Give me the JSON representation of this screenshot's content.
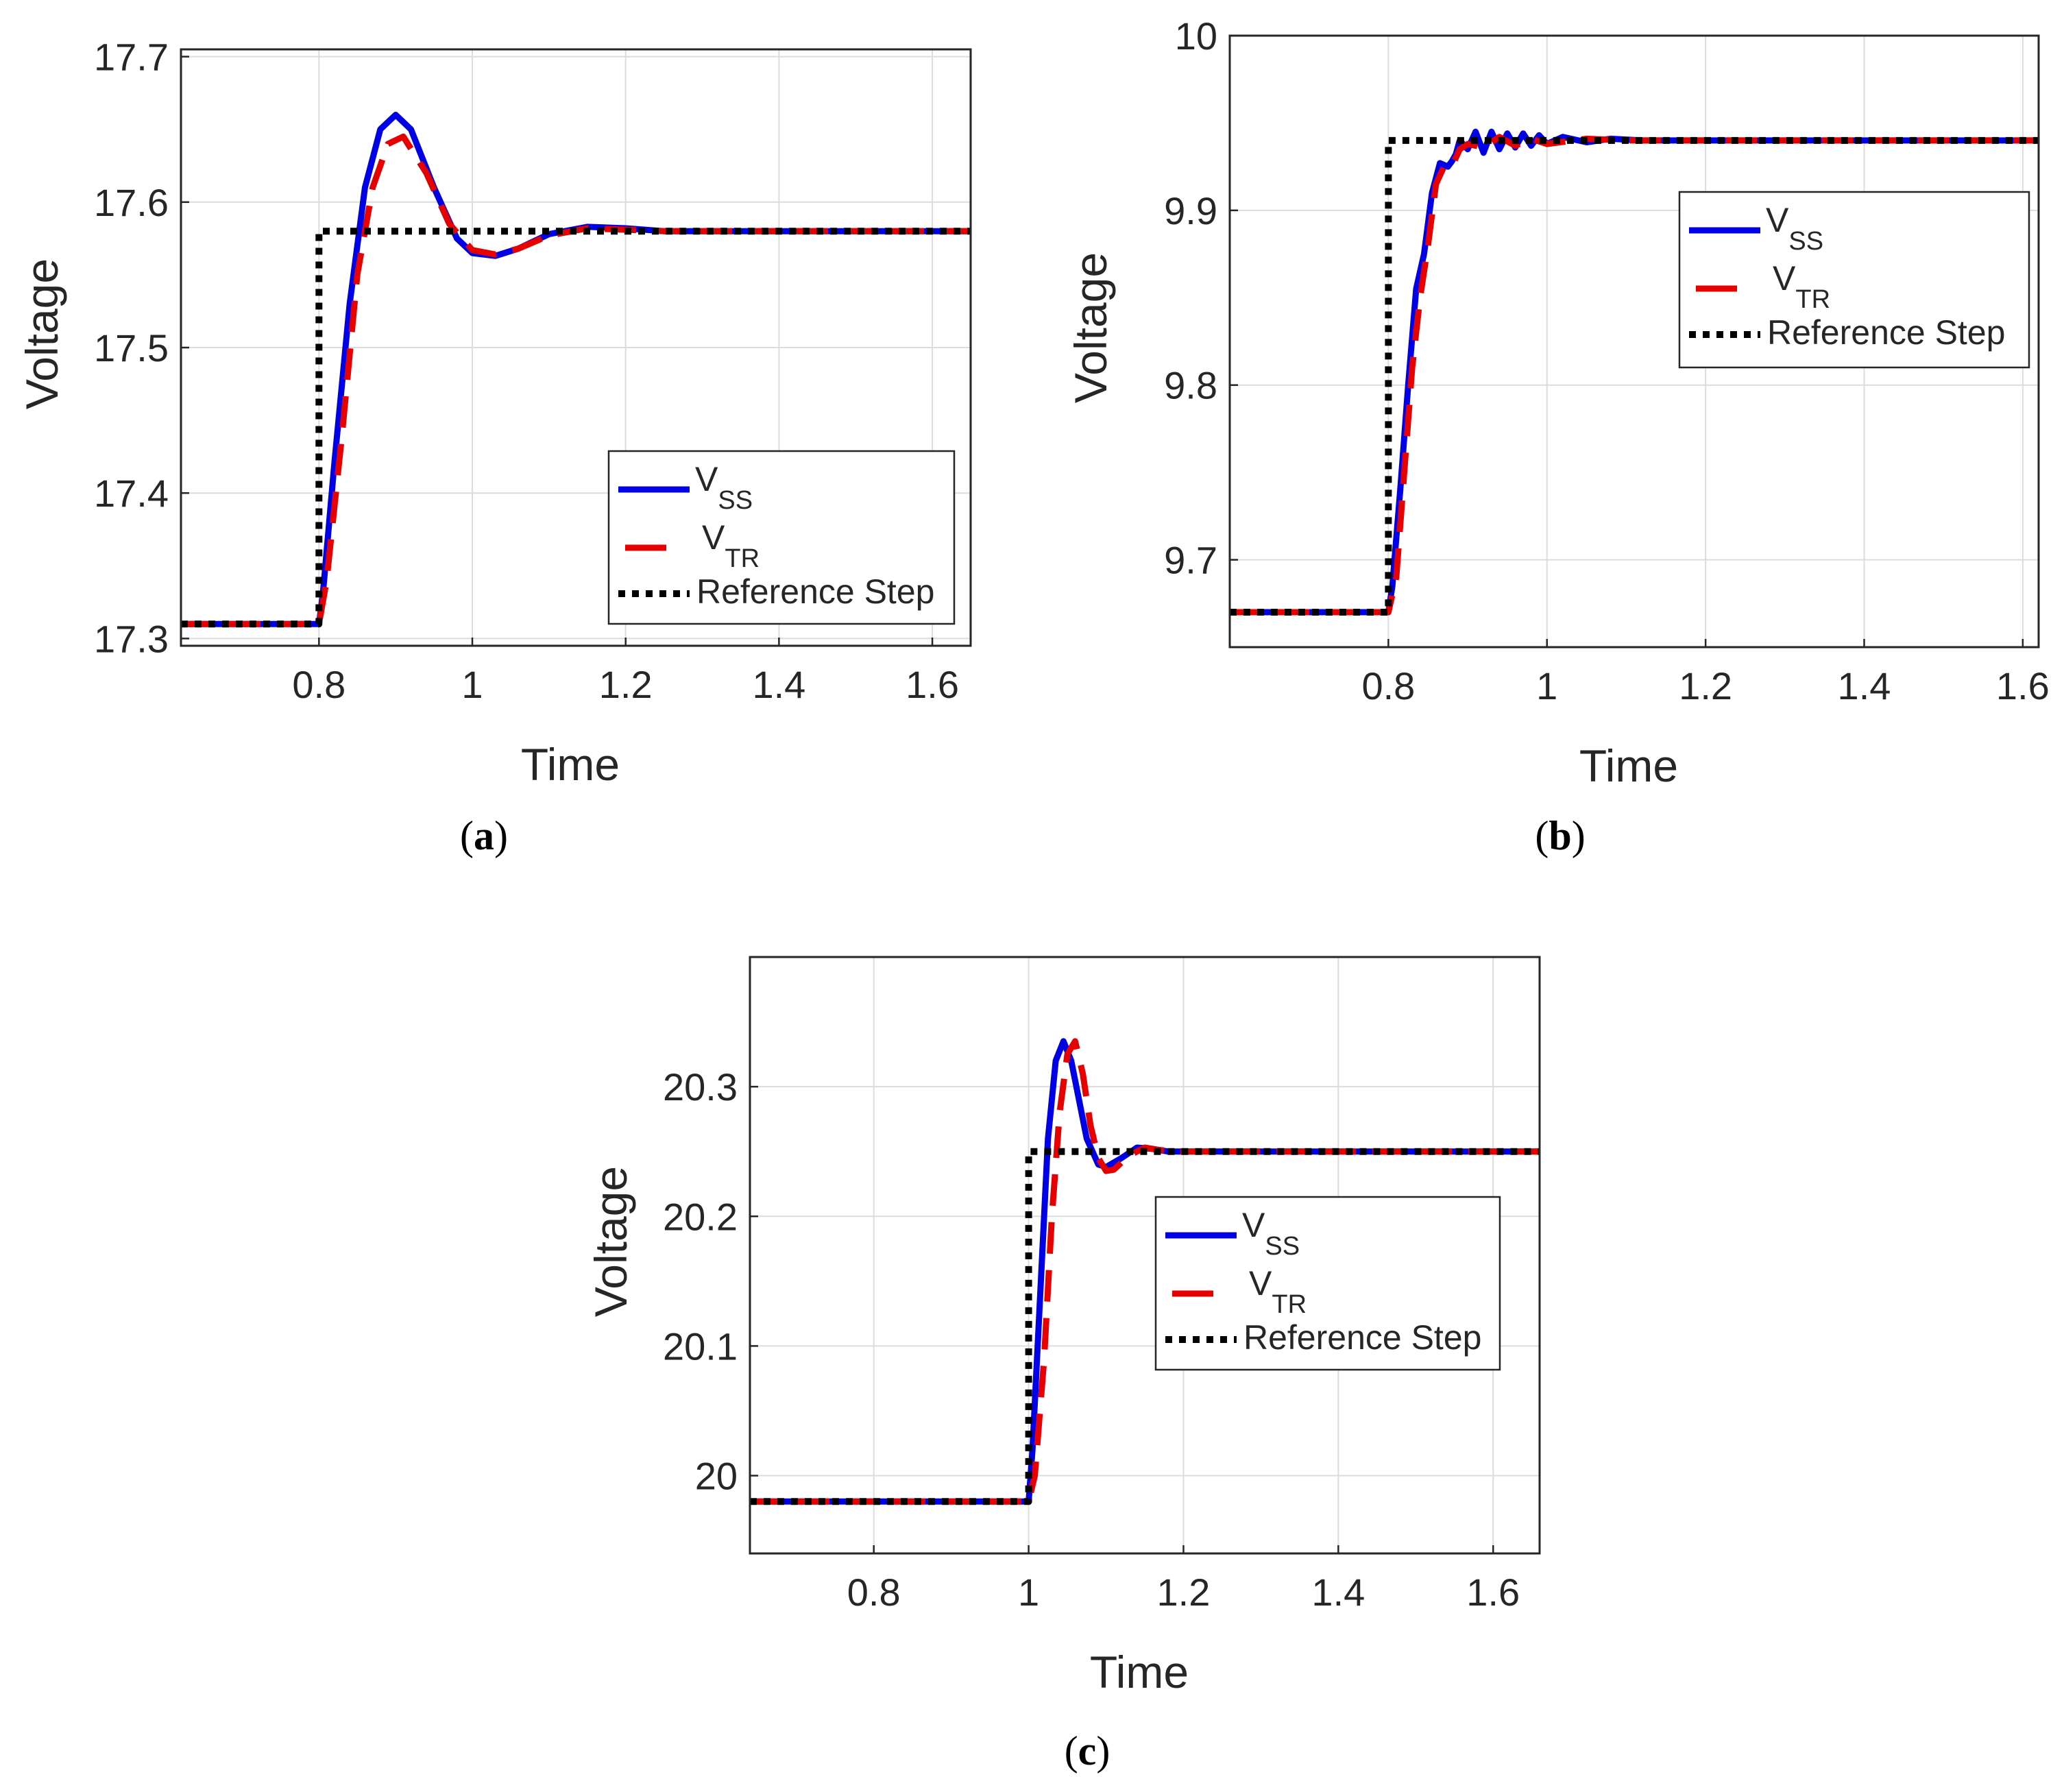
{
  "chart_data": [
    {
      "type": "line",
      "panel": "a",
      "caption_letter": "a",
      "xlabel": "Time",
      "ylabel": "Voltage",
      "xlim": [
        0.62,
        1.65
      ],
      "ylim": [
        17.295,
        17.705
      ],
      "xticks": [
        0.8,
        1,
        1.2,
        1.4,
        1.6
      ],
      "xtick_labels": [
        "0.8",
        "1",
        "1.2",
        "1.4",
        "1.6"
      ],
      "yticks": [
        17.3,
        17.4,
        17.5,
        17.6,
        17.7
      ],
      "ytick_labels": [
        "17.3",
        "17.4",
        "17.5",
        "17.6",
        "17.7"
      ],
      "grid": true,
      "legend_position": "bottom-right",
      "series": [
        {
          "name": "V",
          "sub": "SS",
          "color": "#0000e6",
          "style": "solid",
          "x": [
            0.62,
            0.8,
            0.805,
            0.82,
            0.84,
            0.86,
            0.88,
            0.9,
            0.92,
            0.95,
            0.98,
            1.0,
            1.03,
            1.06,
            1.1,
            1.15,
            1.2,
            1.25,
            1.3,
            1.65
          ],
          "y": [
            17.31,
            17.31,
            17.33,
            17.42,
            17.53,
            17.61,
            17.65,
            17.66,
            17.65,
            17.61,
            17.575,
            17.565,
            17.563,
            17.568,
            17.578,
            17.583,
            17.582,
            17.58,
            17.58,
            17.58
          ]
        },
        {
          "name": "V",
          "sub": "TR",
          "color": "#e60000",
          "style": "dashed",
          "x": [
            0.62,
            0.8,
            0.81,
            0.83,
            0.85,
            0.87,
            0.89,
            0.91,
            0.94,
            0.97,
            1.0,
            1.03,
            1.06,
            1.1,
            1.15,
            1.2,
            1.25,
            1.3,
            1.65
          ],
          "y": [
            17.31,
            17.31,
            17.34,
            17.44,
            17.55,
            17.61,
            17.64,
            17.645,
            17.62,
            17.585,
            17.567,
            17.564,
            17.568,
            17.577,
            17.582,
            17.581,
            17.58,
            17.58,
            17.58
          ]
        },
        {
          "name": "Reference Step",
          "sub": "",
          "color": "#000000",
          "style": "dotted",
          "x": [
            0.62,
            0.8,
            0.8,
            1.65
          ],
          "y": [
            17.31,
            17.31,
            17.58,
            17.58
          ]
        }
      ]
    },
    {
      "type": "line",
      "panel": "b",
      "caption_letter": "b",
      "xlabel": "Time",
      "ylabel": "Voltage",
      "xlim": [
        0.6,
        1.62
      ],
      "ylim": [
        9.65,
        10.0
      ],
      "xticks": [
        0.8,
        1,
        1.2,
        1.4,
        1.6
      ],
      "xtick_labels": [
        "0.8",
        "1",
        "1.2",
        "1.4",
        "1.6"
      ],
      "yticks": [
        9.7,
        9.8,
        9.9,
        10
      ],
      "ytick_labels": [
        "9.7",
        "9.8",
        "9.9",
        "10"
      ],
      "grid": true,
      "legend_position": "top-right",
      "series": [
        {
          "name": "V",
          "sub": "SS",
          "color": "#0000e6",
          "style": "solid",
          "x": [
            0.6,
            0.8,
            0.805,
            0.815,
            0.825,
            0.835,
            0.845,
            0.855,
            0.865,
            0.875,
            0.88,
            0.885,
            0.89,
            0.9,
            0.91,
            0.92,
            0.93,
            0.94,
            0.95,
            0.96,
            0.97,
            0.98,
            0.99,
            1.0,
            1.02,
            1.05,
            1.08,
            1.12,
            1.2,
            1.62
          ],
          "y": [
            9.67,
            9.67,
            9.685,
            9.74,
            9.8,
            9.855,
            9.875,
            9.91,
            9.927,
            9.925,
            9.928,
            9.932,
            9.94,
            9.935,
            9.945,
            9.933,
            9.945,
            9.935,
            9.944,
            9.936,
            9.944,
            9.937,
            9.943,
            9.938,
            9.942,
            9.939,
            9.941,
            9.94,
            9.94,
            9.94
          ]
        },
        {
          "name": "V",
          "sub": "TR",
          "color": "#e60000",
          "style": "dashed",
          "x": [
            0.6,
            0.8,
            0.81,
            0.82,
            0.83,
            0.84,
            0.85,
            0.86,
            0.87,
            0.88,
            0.89,
            0.9,
            0.92,
            0.94,
            0.96,
            0.98,
            1.0,
            1.05,
            1.1,
            1.62
          ],
          "y": [
            9.67,
            9.67,
            9.69,
            9.75,
            9.81,
            9.85,
            9.88,
            9.915,
            9.925,
            9.925,
            9.935,
            9.938,
            9.936,
            9.942,
            9.937,
            9.941,
            9.938,
            9.941,
            9.94,
            9.94
          ]
        },
        {
          "name": "Reference Step",
          "sub": "",
          "color": "#000000",
          "style": "dotted",
          "x": [
            0.6,
            0.8,
            0.8,
            1.62
          ],
          "y": [
            9.67,
            9.67,
            9.94,
            9.94
          ]
        }
      ]
    },
    {
      "type": "line",
      "panel": "c",
      "caption_letter": "c",
      "xlabel": "Time",
      "ylabel": "Voltage",
      "xlim": [
        0.64,
        1.66
      ],
      "ylim": [
        19.94,
        20.4
      ],
      "xticks": [
        0.8,
        1,
        1.2,
        1.4,
        1.6
      ],
      "xtick_labels": [
        "0.8",
        "1",
        "1.2",
        "1.4",
        "1.6"
      ],
      "yticks": [
        20,
        20.1,
        20.2,
        20.3
      ],
      "ytick_labels": [
        "20",
        "20.1",
        "20.2",
        "20.3"
      ],
      "grid": true,
      "legend_position": "right",
      "series": [
        {
          "name": "V",
          "sub": "SS",
          "color": "#0000e6",
          "style": "solid",
          "x": [
            0.64,
            1.0,
            1.005,
            1.015,
            1.025,
            1.035,
            1.045,
            1.055,
            1.065,
            1.075,
            1.09,
            1.1,
            1.12,
            1.14,
            1.16,
            1.18,
            1.2,
            1.66
          ],
          "y": [
            19.98,
            19.98,
            20.02,
            20.14,
            20.26,
            20.32,
            20.335,
            20.32,
            20.29,
            20.26,
            20.24,
            20.238,
            20.245,
            20.253,
            20.252,
            20.25,
            20.25,
            20.25
          ]
        },
        {
          "name": "V",
          "sub": "TR",
          "color": "#e60000",
          "style": "dashed",
          "x": [
            0.64,
            1.0,
            1.008,
            1.02,
            1.03,
            1.04,
            1.05,
            1.06,
            1.07,
            1.08,
            1.09,
            1.1,
            1.11,
            1.13,
            1.15,
            1.17,
            1.2,
            1.66
          ],
          "y": [
            19.98,
            19.98,
            20.0,
            20.09,
            20.2,
            20.28,
            20.325,
            20.335,
            20.31,
            20.27,
            20.245,
            20.235,
            20.236,
            20.247,
            20.253,
            20.251,
            20.25,
            20.25
          ]
        },
        {
          "name": "Reference Step",
          "sub": "",
          "color": "#000000",
          "style": "dotted",
          "x": [
            0.64,
            1.0,
            1.0,
            1.66
          ],
          "y": [
            19.98,
            19.98,
            20.25,
            20.25
          ]
        }
      ]
    }
  ]
}
